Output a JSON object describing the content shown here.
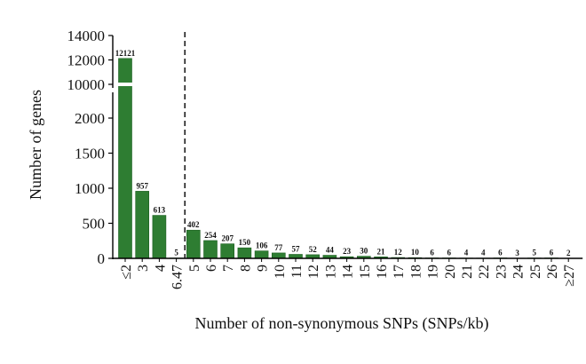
{
  "chart_data": {
    "type": "bar",
    "xlabel": "Number of non-synonymous SNPs (SNPs/kb)",
    "ylabel": "Number of genes",
    "categories": [
      "≤2",
      "3",
      "4",
      "6.47",
      "5",
      "6",
      "7",
      "8",
      "9",
      "10",
      "11",
      "12",
      "13",
      "14",
      "15",
      "16",
      "17",
      "18",
      "19",
      "20",
      "21",
      "22",
      "23",
      "24",
      "25",
      "26",
      "≥27"
    ],
    "values": [
      12121,
      957,
      613,
      5,
      402,
      254,
      207,
      150,
      106,
      77,
      57,
      52,
      44,
      23,
      30,
      21,
      12,
      10,
      6,
      6,
      4,
      4,
      6,
      3,
      5,
      6,
      2
    ],
    "value_labels": [
      "12121",
      "957",
      "613",
      "5",
      "402",
      "254",
      "207",
      "150",
      "106",
      "77",
      "57",
      "52",
      "44",
      "23",
      "30",
      "21",
      "12",
      "10",
      "6",
      "6",
      "4",
      "4",
      "6",
      "3",
      "5",
      "6",
      "2"
    ],
    "y_ticks": [
      "0",
      "500",
      "1000",
      "1500",
      "2000",
      "10000",
      "12000",
      "14000"
    ],
    "y_axis_break": [
      2000,
      10000
    ],
    "ylim_lower": [
      0,
      2000
    ],
    "ylim_upper": [
      10000,
      14000
    ],
    "reference_line": {
      "category": "6.47",
      "style": "dashed"
    },
    "bar_color": "#2e7d32",
    "grid": false,
    "legend": "none"
  }
}
